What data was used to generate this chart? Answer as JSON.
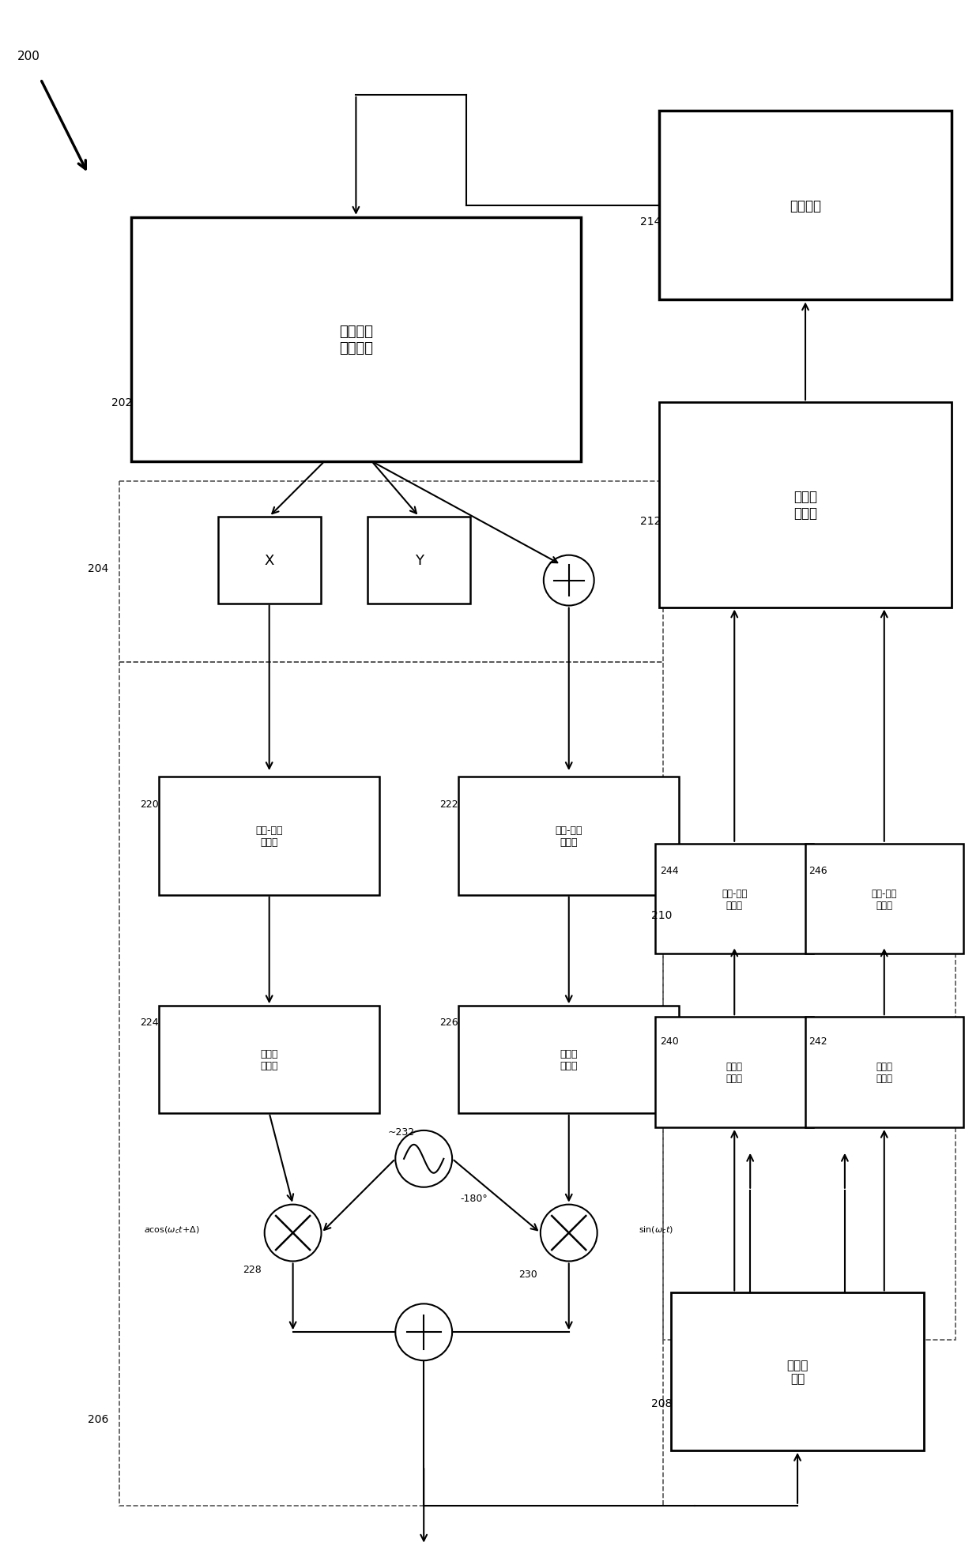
{
  "bg_color": "#ffffff",
  "line_color": "#000000",
  "dashed_color": "#555555",
  "fig_width": 12.4,
  "fig_height": 19.58,
  "labels": {
    "202": "测试信号\n产生单元",
    "220": "数字-模拟\n转换器",
    "222": "数字-模拟\n转换器",
    "224": "基频传\n送电路",
    "226": "基频传\n送电路",
    "208": "自混频\n单元",
    "240": "基频传\n送电路",
    "242": "基频传\n送电路",
    "244": "模拟-数字\n转换器",
    "246": "模拟-数字\n转换器",
    "212": "频谱分\n析单元",
    "214": "控制单元",
    "X": "X",
    "Y": "Y"
  }
}
